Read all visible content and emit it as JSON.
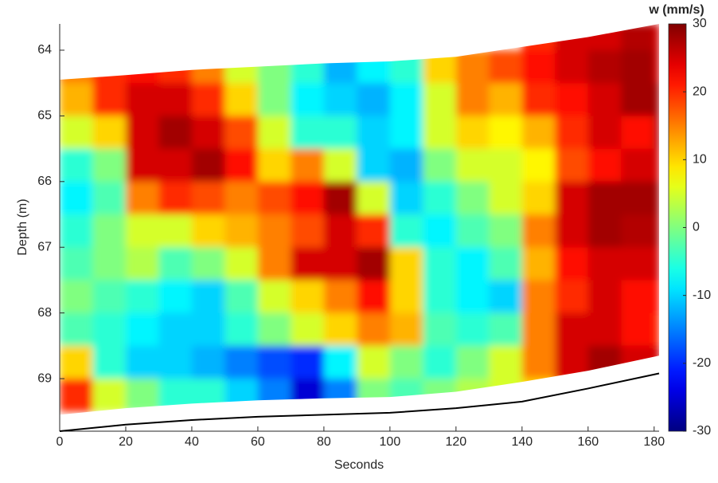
{
  "chart_data": {
    "type": "heatmap",
    "xlabel": "Seconds",
    "ylabel": "Depth (m)",
    "colorbar_label": "w (mm/s)",
    "colormap": "jet",
    "xlim": [
      0,
      181.5
    ],
    "xticks": [
      0,
      20,
      40,
      60,
      80,
      100,
      120,
      140,
      160,
      180
    ],
    "ylim": [
      63.6,
      69.8
    ],
    "yticks": [
      64,
      65,
      66,
      67,
      68,
      69
    ],
    "y_reversed": true,
    "clim": [
      -30,
      30
    ],
    "cticks": [
      -30,
      -20,
      -10,
      0,
      10,
      20,
      30
    ],
    "xbins": [
      0,
      10,
      20,
      30,
      40,
      50,
      60,
      70,
      80,
      90,
      100,
      110,
      120,
      130,
      140,
      150,
      160,
      170,
      180,
      181.5
    ],
    "ybins": [
      63.5,
      64,
      64.5,
      65,
      65.5,
      66,
      66.5,
      67,
      67.5,
      68,
      68.5,
      69,
      69.5,
      70
    ],
    "z": [
      [
        null,
        null,
        null,
        null,
        null,
        null,
        null,
        null,
        null,
        null,
        null,
        null,
        null,
        null,
        20,
        25,
        25,
        27,
        25
      ],
      [
        15,
        20,
        22,
        20,
        15,
        5,
        0,
        -5,
        -12,
        -8,
        -5,
        10,
        15,
        18,
        22,
        25,
        27,
        28,
        25
      ],
      [
        12,
        20,
        25,
        25,
        20,
        10,
        0,
        -8,
        -10,
        -12,
        -8,
        5,
        15,
        12,
        20,
        22,
        25,
        28,
        28
      ],
      [
        5,
        10,
        25,
        28,
        25,
        18,
        5,
        -5,
        -5,
        -10,
        -8,
        5,
        10,
        8,
        12,
        20,
        25,
        22,
        28
      ],
      [
        -5,
        0,
        25,
        25,
        28,
        22,
        10,
        15,
        5,
        -10,
        -12,
        0,
        5,
        5,
        8,
        18,
        22,
        25,
        25
      ],
      [
        -8,
        -3,
        15,
        20,
        18,
        15,
        18,
        22,
        28,
        5,
        -10,
        -5,
        0,
        5,
        10,
        25,
        28,
        28,
        28
      ],
      [
        -5,
        0,
        5,
        5,
        10,
        12,
        15,
        18,
        25,
        20,
        -5,
        -8,
        -3,
        0,
        15,
        25,
        28,
        27,
        27
      ],
      [
        -3,
        0,
        3,
        -3,
        0,
        5,
        15,
        25,
        25,
        28,
        10,
        -5,
        -8,
        -3,
        12,
        22,
        25,
        25,
        25
      ],
      [
        0,
        -3,
        -5,
        -8,
        -10,
        -3,
        5,
        10,
        15,
        22,
        10,
        -5,
        -8,
        -10,
        15,
        20,
        25,
        22,
        22
      ],
      [
        -3,
        -5,
        -8,
        -10,
        -10,
        -5,
        0,
        5,
        10,
        15,
        12,
        -3,
        -5,
        -3,
        15,
        25,
        25,
        22,
        20
      ],
      [
        10,
        -5,
        -10,
        -10,
        -12,
        -15,
        -18,
        -20,
        -8,
        5,
        0,
        -5,
        0,
        5,
        15,
        25,
        28,
        25,
        25
      ],
      [
        20,
        5,
        0,
        -5,
        -5,
        -10,
        -15,
        -25,
        -15,
        0,
        -3,
        0,
        3,
        5,
        10,
        20,
        20,
        null,
        null
      ],
      [
        null,
        null,
        null,
        null,
        null,
        null,
        null,
        null,
        null,
        null,
        null,
        null,
        null,
        null,
        null,
        null,
        null,
        null,
        null
      ]
    ],
    "boundary_x": [
      0,
      20,
      40,
      60,
      80,
      100,
      120,
      140,
      160,
      181.5
    ],
    "data_top": [
      64.45,
      64.38,
      64.3,
      64.25,
      64.2,
      64.17,
      64.1,
      63.95,
      63.8,
      63.6
    ],
    "data_bottom": [
      69.55,
      69.45,
      69.38,
      69.33,
      69.3,
      69.28,
      69.2,
      69.05,
      68.88,
      68.65
    ],
    "bottom_line": [
      69.8,
      69.7,
      69.63,
      69.58,
      69.55,
      69.52,
      69.45,
      69.35,
      69.15,
      68.92
    ],
    "line_color": "#000000"
  }
}
